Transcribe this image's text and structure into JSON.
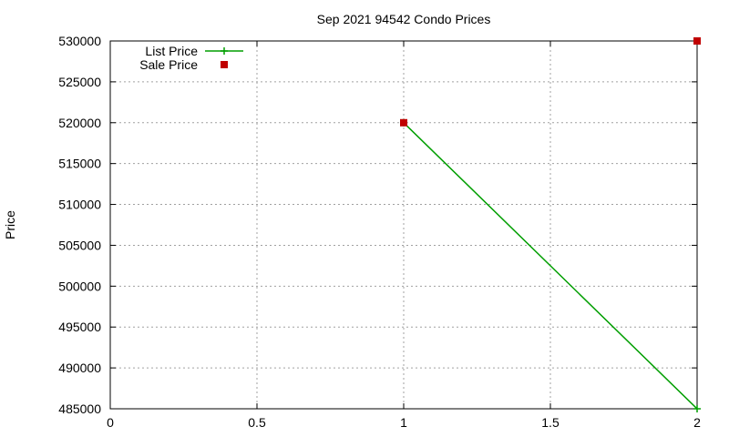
{
  "chart_data": {
    "type": "line",
    "title": "Sep 2021 94542 Condo Prices",
    "xlabel": "",
    "ylabel": "Price",
    "xlim": [
      0,
      2
    ],
    "ylim": [
      485000,
      530000
    ],
    "x_ticks": [
      0,
      0.5,
      1,
      1.5,
      2
    ],
    "x_tick_labels": [
      "0",
      "0.5",
      "1",
      "1.5",
      "2"
    ],
    "y_ticks": [
      485000,
      490000,
      495000,
      500000,
      505000,
      510000,
      515000,
      520000,
      525000,
      530000
    ],
    "y_tick_labels": [
      "485000",
      "490000",
      "495000",
      "500000",
      "505000",
      "510000",
      "515000",
      "520000",
      "525000",
      "530000"
    ],
    "grid": true,
    "legend_position": "top-left",
    "series": [
      {
        "name": "List Price",
        "style": "linespoints",
        "marker": "plus",
        "color": "#009e00",
        "points": [
          {
            "x": 1,
            "y": 520000
          },
          {
            "x": 2,
            "y": 485000
          }
        ]
      },
      {
        "name": "Sale Price",
        "style": "points",
        "marker": "square",
        "color": "#c00000",
        "points": [
          {
            "x": 1,
            "y": 520000
          },
          {
            "x": 2,
            "y": 530000
          }
        ]
      }
    ]
  }
}
